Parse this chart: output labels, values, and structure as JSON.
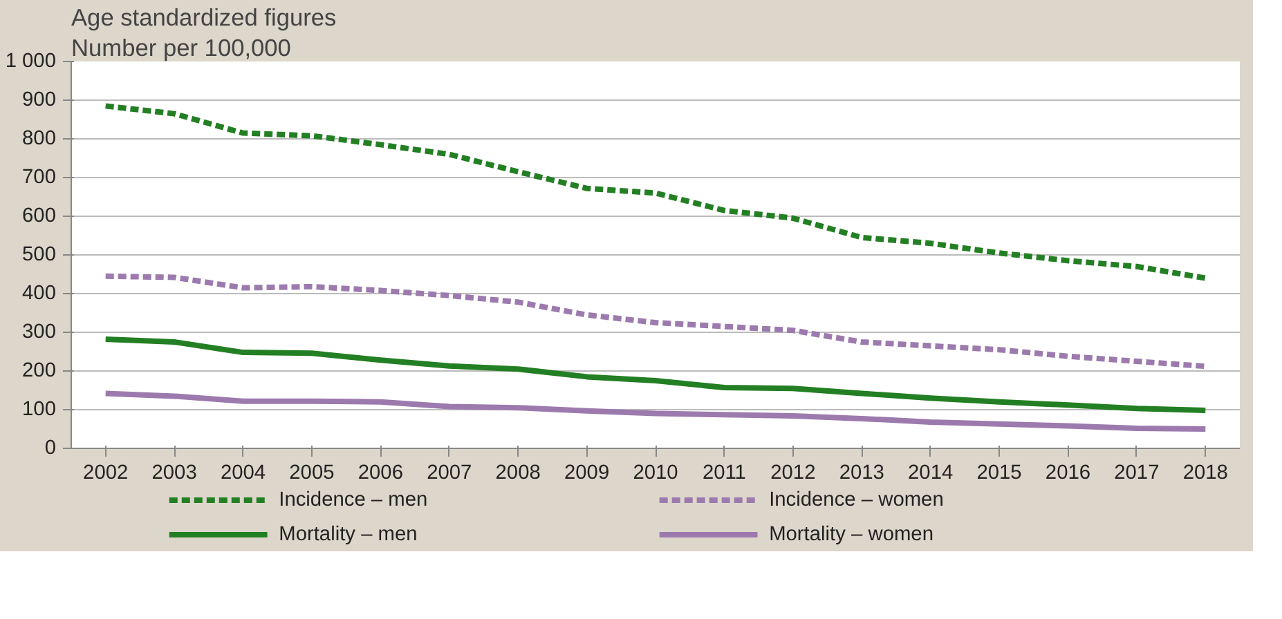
{
  "chart_data": {
    "type": "line",
    "title": "Age standardized figures",
    "ylabel": "Number per 100,000",
    "categories": [
      "2002",
      "2003",
      "2004",
      "2005",
      "2006",
      "2007",
      "2008",
      "2009",
      "2010",
      "2011",
      "2012",
      "2013",
      "2014",
      "2015",
      "2016",
      "2017",
      "2018"
    ],
    "series": [
      {
        "name": "Incidence – men",
        "color": "#237f23",
        "line_style": "dashed",
        "values": [
          885,
          865,
          815,
          808,
          785,
          760,
          715,
          672,
          660,
          615,
          595,
          545,
          530,
          505,
          485,
          470,
          440
        ]
      },
      {
        "name": "Incidence – women",
        "color": "#9c7aae",
        "line_style": "dashed",
        "values": [
          445,
          442,
          415,
          418,
          408,
          395,
          378,
          345,
          325,
          315,
          305,
          275,
          265,
          255,
          238,
          225,
          212
        ]
      },
      {
        "name": "Mortality – men",
        "color": "#237f23",
        "line_style": "solid",
        "values": [
          282,
          275,
          248,
          246,
          228,
          213,
          205,
          185,
          175,
          157,
          155,
          142,
          130,
          120,
          112,
          103,
          98
        ]
      },
      {
        "name": "Mortality – women",
        "color": "#9c7aae",
        "line_style": "solid",
        "values": [
          142,
          135,
          122,
          122,
          120,
          108,
          105,
          97,
          90,
          87,
          84,
          77,
          68,
          63,
          58,
          52,
          50
        ]
      }
    ],
    "ylim": [
      0,
      1000
    ],
    "yticks": [
      0,
      100,
      200,
      300,
      400,
      500,
      600,
      700,
      800,
      900,
      {
        "value": 1000,
        "label": "1 000"
      }
    ],
    "grid": "y",
    "legend": "bottom",
    "marker": "none"
  }
}
